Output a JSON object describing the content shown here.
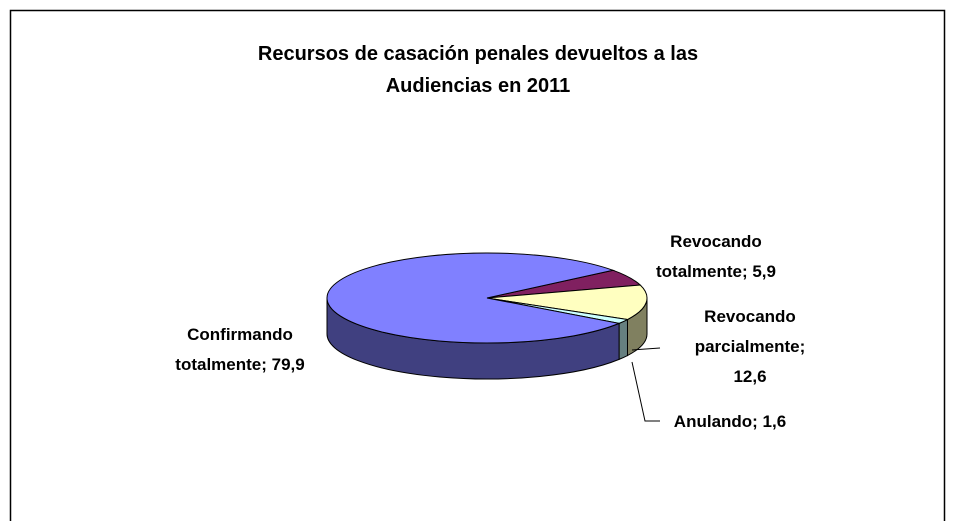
{
  "chart_data": {
    "type": "pie3d",
    "title": "Recursos de casación penales devueltos a las Audiencias en 2011",
    "values": [
      5.9,
      12.6,
      1.6,
      79.9
    ],
    "value_labels": [
      "Revocando totalmente; 5,9",
      "Revocando parcialmente; 12,6",
      "Anulando; 1,6",
      "Confirmando totalmente; 79,9"
    ],
    "colors": [
      "#802060",
      "#ffffc0",
      "#ccffff",
      "#8080ff"
    ]
  }
}
